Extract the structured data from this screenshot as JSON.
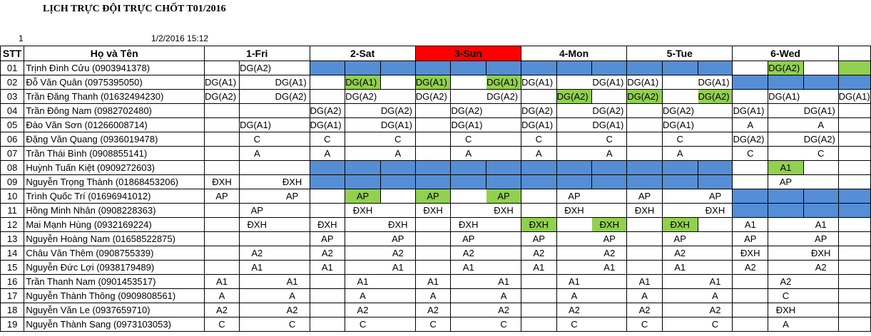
{
  "title": "LỊCH TRỰC ĐỘI TRỰC CHỐT T01/2016",
  "row_number": "1",
  "timestamp": "1/2/2016 15:12",
  "headers": {
    "stt": "STT",
    "name": "Họ và Tên"
  },
  "days": [
    "1-Fri",
    "2-Sat",
    "3-Sun",
    "4-Mon",
    "5-Tue",
    "6-Wed"
  ],
  "highlight_day_index": 2,
  "colors": {
    "blue": "#558ed5",
    "green": "#92d050",
    "red": "#ff0000"
  },
  "legend_codes": {
    "B": "blue fill",
    "G": "green fill"
  },
  "rows": [
    {
      "stt": "01",
      "name": "Trịnh Đình Cửu (0903941378)",
      "cells": [
        "",
        "DG(A2)",
        "",
        "B",
        "B",
        "B",
        "B",
        "B",
        "B",
        "B",
        "B",
        "B",
        "B",
        "B",
        "B",
        "",
        "G:DG(A2)",
        "",
        "G:"
      ]
    },
    {
      "stt": "02",
      "name": "Đỗ Văn Quân (0975395050)",
      "cells": [
        "DG(A1)",
        "",
        "DG(A1)",
        "",
        "G:DG(A1)",
        "",
        "G:DG(A1)",
        "",
        "G:DG(A1)",
        "DG(A1)",
        "",
        "DG(A1)",
        "DG(A1)",
        "",
        "DG(A1)",
        "B",
        "B",
        "B",
        "B"
      ]
    },
    {
      "stt": "03",
      "name": "Trần Đăng Thanh (01632494230)",
      "cells": [
        "DG(A2)",
        "",
        "DG(A2)",
        "",
        "DG(A2)",
        "",
        "DG(A2)",
        "",
        "DG(A2)",
        "",
        "G:DG(A2)",
        "",
        "G:DG(A2)",
        "",
        "G:DG(A2)",
        "",
        "DG(A1)",
        "",
        "DG(A1)"
      ]
    },
    {
      "stt": "04",
      "name": "Trần Đông Nam (0982702480)",
      "cells": [
        "",
        "",
        "",
        "DG(A2)",
        "",
        "DG(A2)",
        "",
        "DG(A2)",
        "",
        "DG(A2)",
        "",
        "DG(A2)",
        "",
        "DG(A2)",
        "",
        "DG(A1)",
        "",
        "DG(A1)",
        ""
      ]
    },
    {
      "stt": "05",
      "name": "Đào Văn Sơn (01266008714)",
      "cells": [
        "",
        "DG(A1)",
        "",
        "DG(A1)",
        "",
        "DG(A1)",
        "",
        "DG(A1)",
        "",
        "DG(A1)",
        "",
        "DG(A1)",
        "",
        "DG(A1)",
        "",
        "A",
        "",
        "A",
        ""
      ]
    },
    {
      "stt": "06",
      "name": "Đặng Văn Quang (0936019478)",
      "cells": [
        "",
        "C",
        "",
        "C",
        "",
        "C",
        "",
        "C",
        "",
        "C",
        "",
        "C",
        "",
        "C",
        "",
        "DG(A2)",
        "",
        "DG(A2)",
        ""
      ]
    },
    {
      "stt": "07",
      "name": "Trần Thái Bình (0908855141)",
      "cells": [
        "",
        "A",
        "",
        "A",
        "",
        "A",
        "",
        "A",
        "",
        "A",
        "",
        "A",
        "",
        "A",
        "",
        "C",
        "",
        "C",
        ""
      ]
    },
    {
      "stt": "08",
      "name": "Huỳnh Tuấn Kiệt (0909272603)",
      "cells": [
        "",
        "",
        "",
        "B",
        "B",
        "B",
        "B",
        "B",
        "B",
        "B",
        "B",
        "B",
        "B",
        "B",
        "B",
        "",
        "G:A1",
        "",
        ""
      ]
    },
    {
      "stt": "09",
      "name": "Nguyễn Trọng Thành (01868453206)",
      "cells": [
        "ĐXH",
        "",
        "ĐXH",
        "B",
        "B",
        "B",
        "B",
        "B",
        "B",
        "B",
        "B",
        "B",
        "B",
        "B",
        "B",
        "",
        "AP",
        "",
        ""
      ]
    },
    {
      "stt": "10",
      "name": "Trình Quốc Trí (01696941012)",
      "cells": [
        "AP",
        "",
        "AP",
        "",
        "G:AP",
        "",
        "G:AP",
        "",
        "G:AP",
        "",
        "AP",
        "",
        "AP",
        "",
        "AP",
        "B",
        "B",
        "B",
        "B"
      ]
    },
    {
      "stt": "11",
      "name": "Hồng Minh Nhân (0908228363)",
      "cells": [
        "",
        "AP",
        "",
        "",
        "ĐXH",
        "",
        "ĐXH",
        "",
        "ĐXH",
        "",
        "ĐXH",
        "",
        "ĐXH",
        "",
        "ĐXH",
        "B",
        "B",
        "B",
        "B"
      ]
    },
    {
      "stt": "12",
      "name": "Mai Mạnh Hùng (0932169224)",
      "cells": [
        "",
        "ĐXH",
        "",
        "ĐXH",
        "",
        "ĐXH",
        "",
        "ĐXH",
        "",
        "G:ĐXH",
        "",
        "G:ĐXH",
        "",
        "G:ĐXH",
        "",
        "A1",
        "",
        "A1",
        ""
      ]
    },
    {
      "stt": "13",
      "name": "Nguyễn Hoàng Nam (01658522875)",
      "cells": [
        "",
        "",
        "",
        "AP",
        "",
        "AP",
        "",
        "AP",
        "",
        "AP",
        "",
        "AP",
        "",
        "AP",
        "",
        "AP",
        "",
        "AP",
        ""
      ]
    },
    {
      "stt": "14",
      "name": "Châu Văn Thêm (0908755339)",
      "cells": [
        "",
        "A2",
        "",
        "A2",
        "",
        "A2",
        "",
        "A2",
        "",
        "A2",
        "",
        "A2",
        "",
        "A2",
        "",
        "ĐXH",
        "",
        "ĐXH",
        ""
      ]
    },
    {
      "stt": "15",
      "name": "Nguyễn Đức Lợi (0938179489)",
      "cells": [
        "",
        "A1",
        "",
        "A1",
        "",
        "A1",
        "",
        "A1",
        "",
        "A1",
        "",
        "A1",
        "",
        "A1",
        "",
        "A2",
        "",
        "A2",
        ""
      ]
    },
    {
      "stt": "16",
      "name": "Trần Thanh Nam (0901453517)",
      "cells": [
        "A1",
        "",
        "A1",
        "",
        "A1",
        "",
        "A1",
        "",
        "A1",
        "",
        "A1",
        "",
        "A1",
        "",
        "A1",
        "",
        "A2",
        "",
        ""
      ]
    },
    {
      "stt": "17",
      "name": "Nguyễn Thành Thông (0909808561)",
      "cells": [
        "A",
        "",
        "A",
        "",
        "A",
        "",
        "A",
        "",
        "A",
        "",
        "A",
        "",
        "A",
        "",
        "A",
        "",
        "C",
        "",
        ""
      ]
    },
    {
      "stt": "18",
      "name": "Nguyễn Văn Le (0937659710)",
      "cells": [
        "A2",
        "",
        "A2",
        "",
        "A2",
        "",
        "A2",
        "",
        "A2",
        "",
        "A2",
        "",
        "A2",
        "",
        "A2",
        "",
        "ĐXH",
        "",
        ""
      ]
    },
    {
      "stt": "19",
      "name": "Nguyễn Thành Sang (0973103053)",
      "cells": [
        "C",
        "",
        "C",
        "",
        "C",
        "",
        "C",
        "",
        "C",
        "",
        "C",
        "",
        "C",
        "",
        "C",
        "",
        "A",
        "",
        ""
      ]
    }
  ]
}
